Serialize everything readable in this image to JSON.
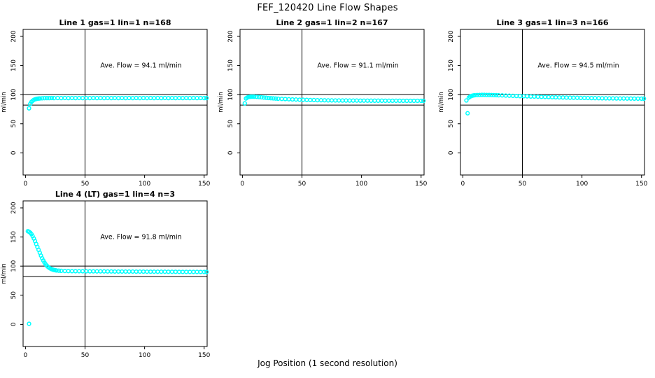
{
  "page": {
    "title": "FEF_120420  Line Flow Shapes",
    "xlabel": "Jog Position (1 second resolution)"
  },
  "chart_data": [
    {
      "type": "scatter",
      "title": "Line 1 gas=1 lin=1 n=168",
      "ylabel": "ml/min",
      "annotation": "Ave. Flow =  94.1  ml/min",
      "ave_flow_ml_min": 94.1,
      "x_ticks": [
        0,
        50,
        100,
        150
      ],
      "y_ticks": [
        0,
        50,
        100,
        150,
        200
      ],
      "xlim": [
        -2,
        152.5
      ],
      "ylim": [
        -38,
        212
      ],
      "ref_lines_h": [
        100,
        82
      ],
      "ref_line_v": 50,
      "marker_color": "#00FFFF",
      "grid": false,
      "points": [
        [
          3,
          76.5
        ],
        [
          4,
          84
        ],
        [
          5,
          87.5
        ],
        [
          6,
          89.5
        ],
        [
          7,
          91
        ],
        [
          8,
          92
        ],
        [
          9,
          92.6
        ],
        [
          10,
          93
        ],
        [
          11,
          93.3
        ],
        [
          12,
          93.5
        ],
        [
          14,
          93.8
        ],
        [
          16,
          94
        ],
        [
          18,
          94.1
        ],
        [
          20,
          94.1
        ],
        [
          22,
          94.2
        ],
        [
          24,
          94.1
        ],
        [
          27,
          94.2
        ],
        [
          30,
          94.1
        ],
        [
          33,
          94.2
        ],
        [
          36,
          94.1
        ],
        [
          39,
          94.2
        ],
        [
          42,
          94.1
        ],
        [
          45,
          94.2
        ],
        [
          48,
          94.1
        ],
        [
          51,
          94.2
        ],
        [
          54,
          94.1
        ],
        [
          57,
          94.2
        ],
        [
          60,
          94.1
        ],
        [
          63,
          94.2
        ],
        [
          66,
          94.1
        ],
        [
          69,
          94.2
        ],
        [
          72,
          94.1
        ],
        [
          75,
          94.2
        ],
        [
          78,
          94.1
        ],
        [
          81,
          94.2
        ],
        [
          84,
          94.1
        ],
        [
          87,
          94.2
        ],
        [
          90,
          94.1
        ],
        [
          93,
          94.2
        ],
        [
          96,
          94.1
        ],
        [
          99,
          94.2
        ],
        [
          102,
          94.1
        ],
        [
          105,
          94.2
        ],
        [
          108,
          94.1
        ],
        [
          111,
          94.2
        ],
        [
          114,
          94.1
        ],
        [
          117,
          94.2
        ],
        [
          120,
          94.1
        ],
        [
          123,
          94.2
        ],
        [
          126,
          94.1
        ],
        [
          129,
          94.2
        ],
        [
          132,
          94.1
        ],
        [
          135,
          94.2
        ],
        [
          138,
          94.1
        ],
        [
          141,
          94.2
        ],
        [
          144,
          94.1
        ],
        [
          147,
          94.2
        ],
        [
          150,
          94.1
        ],
        [
          152,
          94.1
        ]
      ]
    },
    {
      "type": "scatter",
      "title": "Line 2 gas=1 lin=2 n=167",
      "ylabel": "ml/min",
      "annotation": "Ave. Flow =  91.1  ml/min",
      "ave_flow_ml_min": 91.1,
      "x_ticks": [
        0,
        50,
        100,
        150
      ],
      "y_ticks": [
        0,
        50,
        100,
        150,
        200
      ],
      "xlim": [
        -2,
        152.5
      ],
      "ylim": [
        -38,
        212
      ],
      "ref_lines_h": [
        100,
        82
      ],
      "ref_line_v": 50,
      "marker_color": "#00FFFF",
      "grid": false,
      "points": [
        [
          2,
          85
        ],
        [
          3,
          93.5
        ],
        [
          4,
          95
        ],
        [
          5,
          95.8
        ],
        [
          6,
          96.2
        ],
        [
          7,
          96.4
        ],
        [
          8,
          96.5
        ],
        [
          9,
          96.5
        ],
        [
          10,
          96.4
        ],
        [
          12,
          96.2
        ],
        [
          14,
          95.8
        ],
        [
          16,
          95.4
        ],
        [
          18,
          95
        ],
        [
          20,
          94.6
        ],
        [
          22,
          94.2
        ],
        [
          24,
          93.9
        ],
        [
          26,
          93.6
        ],
        [
          28,
          93.3
        ],
        [
          30,
          93
        ],
        [
          33,
          92.7
        ],
        [
          36,
          92.4
        ],
        [
          39,
          92.1
        ],
        [
          42,
          91.8
        ],
        [
          45,
          91.6
        ],
        [
          48,
          91.4
        ],
        [
          51,
          91.2
        ],
        [
          54,
          91
        ],
        [
          57,
          90.8
        ],
        [
          60,
          90.7
        ],
        [
          63,
          90.5
        ],
        [
          66,
          90.4
        ],
        [
          69,
          90.3
        ],
        [
          72,
          90.2
        ],
        [
          75,
          90.1
        ],
        [
          78,
          90
        ],
        [
          81,
          90
        ],
        [
          84,
          89.9
        ],
        [
          87,
          89.9
        ],
        [
          90,
          89.8
        ],
        [
          93,
          89.8
        ],
        [
          96,
          89.8
        ],
        [
          99,
          89.7
        ],
        [
          102,
          89.7
        ],
        [
          105,
          89.7
        ],
        [
          108,
          89.6
        ],
        [
          111,
          89.6
        ],
        [
          114,
          89.6
        ],
        [
          117,
          89.6
        ],
        [
          120,
          89.5
        ],
        [
          123,
          89.5
        ],
        [
          126,
          89.5
        ],
        [
          129,
          89.5
        ],
        [
          132,
          89.5
        ],
        [
          135,
          89.4
        ],
        [
          138,
          89.4
        ],
        [
          141,
          89.4
        ],
        [
          144,
          89.4
        ],
        [
          147,
          89.4
        ],
        [
          150,
          89.4
        ],
        [
          152,
          89.4
        ]
      ]
    },
    {
      "type": "scatter",
      "title": "Line 3 gas=1 lin=3 n=166",
      "ylabel": "ml/min",
      "annotation": "Ave. Flow =  94.5  ml/min",
      "ave_flow_ml_min": 94.5,
      "x_ticks": [
        0,
        50,
        100,
        150
      ],
      "y_ticks": [
        0,
        50,
        100,
        150,
        200
      ],
      "xlim": [
        -2,
        152.5
      ],
      "ylim": [
        -38,
        212
      ],
      "ref_lines_h": [
        100,
        82
      ],
      "ref_line_v": 50,
      "marker_color": "#00FFFF",
      "grid": false,
      "points": [
        [
          3,
          90
        ],
        [
          4,
          68
        ],
        [
          5,
          95
        ],
        [
          6,
          96.5
        ],
        [
          7,
          97.5
        ],
        [
          8,
          98.2
        ],
        [
          9,
          98.7
        ],
        [
          10,
          99
        ],
        [
          12,
          99.3
        ],
        [
          14,
          99.5
        ],
        [
          16,
          99.6
        ],
        [
          18,
          99.6
        ],
        [
          20,
          99.5
        ],
        [
          22,
          99.4
        ],
        [
          24,
          99.3
        ],
        [
          26,
          99.2
        ],
        [
          28,
          99.1
        ],
        [
          30,
          98.9
        ],
        [
          33,
          98.7
        ],
        [
          36,
          98.4
        ],
        [
          39,
          98.2
        ],
        [
          42,
          97.9
        ],
        [
          45,
          97.7
        ],
        [
          48,
          97.4
        ],
        [
          51,
          97.2
        ],
        [
          54,
          97
        ],
        [
          57,
          96.8
        ],
        [
          60,
          96.6
        ],
        [
          63,
          96.4
        ],
        [
          66,
          96.2
        ],
        [
          69,
          96
        ],
        [
          72,
          95.8
        ],
        [
          75,
          95.6
        ],
        [
          78,
          95.4
        ],
        [
          81,
          95.3
        ],
        [
          84,
          95.1
        ],
        [
          87,
          95
        ],
        [
          90,
          94.8
        ],
        [
          93,
          94.7
        ],
        [
          96,
          94.6
        ],
        [
          99,
          94.4
        ],
        [
          102,
          94.3
        ],
        [
          105,
          94.2
        ],
        [
          108,
          94.1
        ],
        [
          111,
          94
        ],
        [
          114,
          93.9
        ],
        [
          117,
          93.8
        ],
        [
          120,
          93.7
        ],
        [
          123,
          93.6
        ],
        [
          126,
          93.6
        ],
        [
          129,
          93.5
        ],
        [
          132,
          93.4
        ],
        [
          135,
          93.4
        ],
        [
          138,
          93.3
        ],
        [
          141,
          93.3
        ],
        [
          144,
          93.2
        ],
        [
          147,
          93.2
        ],
        [
          150,
          93.1
        ],
        [
          152,
          93.1
        ]
      ]
    },
    {
      "type": "scatter",
      "title": "Line 4 (LT) gas=1 lin=4 n=3",
      "ylabel": "ml/min",
      "annotation": "Ave. Flow =  91.8  ml/min",
      "ave_flow_ml_min": 91.8,
      "x_ticks": [
        0,
        50,
        100,
        150
      ],
      "y_ticks": [
        0,
        50,
        100,
        150,
        200
      ],
      "xlim": [
        -2,
        152.5
      ],
      "ylim": [
        -38,
        212
      ],
      "ref_lines_h": [
        100,
        82
      ],
      "ref_line_v": 50,
      "marker_color": "#00FFFF",
      "grid": false,
      "points": [
        [
          3,
          1
        ],
        [
          2,
          160
        ],
        [
          3,
          159
        ],
        [
          4,
          157.5
        ],
        [
          5,
          155
        ],
        [
          6,
          151.5
        ],
        [
          7,
          147.5
        ],
        [
          8,
          143
        ],
        [
          9,
          138
        ],
        [
          10,
          133
        ],
        [
          11,
          128
        ],
        [
          12,
          123
        ],
        [
          13,
          118
        ],
        [
          14,
          113.5
        ],
        [
          15,
          109.5
        ],
        [
          16,
          106
        ],
        [
          17,
          103
        ],
        [
          18,
          100.5
        ],
        [
          19,
          98.5
        ],
        [
          20,
          97
        ],
        [
          21,
          95.8
        ],
        [
          22,
          94.8
        ],
        [
          23,
          94
        ],
        [
          24,
          93.4
        ],
        [
          25,
          93
        ],
        [
          26,
          92.6
        ],
        [
          28,
          92.2
        ],
        [
          30,
          91.9
        ],
        [
          33,
          91.7
        ],
        [
          36,
          91.5
        ],
        [
          39,
          91.4
        ],
        [
          42,
          91.3
        ],
        [
          45,
          91.3
        ],
        [
          48,
          91.2
        ],
        [
          51,
          91.2
        ],
        [
          54,
          91.1
        ],
        [
          57,
          91.1
        ],
        [
          60,
          91
        ],
        [
          63,
          91
        ],
        [
          66,
          91
        ],
        [
          69,
          90.9
        ],
        [
          72,
          90.9
        ],
        [
          75,
          90.8
        ],
        [
          78,
          90.8
        ],
        [
          81,
          90.8
        ],
        [
          84,
          90.7
        ],
        [
          87,
          90.7
        ],
        [
          90,
          90.7
        ],
        [
          93,
          90.6
        ],
        [
          96,
          90.6
        ],
        [
          99,
          90.6
        ],
        [
          102,
          90.5
        ],
        [
          105,
          90.5
        ],
        [
          108,
          90.5
        ],
        [
          111,
          90.4
        ],
        [
          114,
          90.4
        ],
        [
          117,
          90.4
        ],
        [
          120,
          90.3
        ],
        [
          123,
          90.3
        ],
        [
          126,
          90.3
        ],
        [
          129,
          90.2
        ],
        [
          132,
          90.2
        ],
        [
          135,
          90.2
        ],
        [
          138,
          90.1
        ],
        [
          141,
          90.1
        ],
        [
          144,
          90.1
        ],
        [
          147,
          90
        ],
        [
          150,
          90
        ],
        [
          152,
          90
        ]
      ]
    }
  ]
}
